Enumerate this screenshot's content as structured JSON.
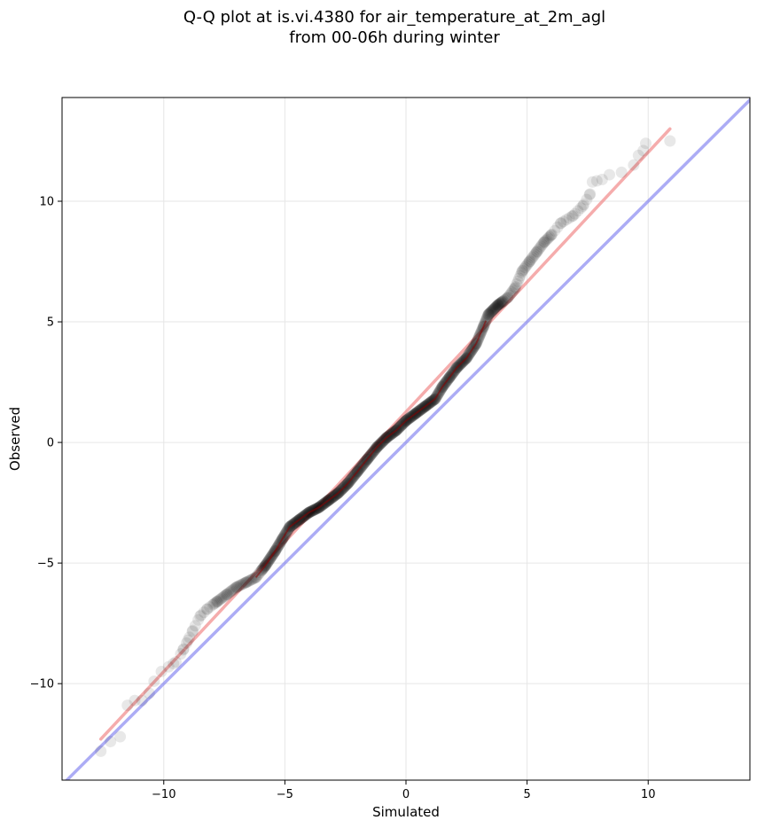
{
  "chart_data": {
    "type": "scatter",
    "title_line1": "Q-Q plot at is.vi.4380 for air_temperature_at_2m_agl",
    "title_line2": "from 00-06h during winter",
    "xlabel": "Simulated",
    "ylabel": "Observed",
    "xlim": [
      -14.2,
      14.2
    ],
    "ylim": [
      -14.0,
      14.3
    ],
    "xticks": [
      -10,
      -5,
      0,
      5,
      10
    ],
    "yticks": [
      -10,
      -5,
      0,
      5,
      10
    ],
    "xtick_labels": [
      "−10",
      "−5",
      "0",
      "5",
      "10"
    ],
    "ytick_labels": [
      "−10",
      "−5",
      "0",
      "5",
      "10"
    ],
    "grid": true,
    "colors": {
      "points": "#000000",
      "fit_line": "#f08080",
      "identity_line": "#8080f0",
      "inner_trend": "#8b0000"
    },
    "quantile_curve": [
      [
        -12.6,
        -12.8
      ],
      [
        -12.2,
        -12.4
      ],
      [
        -11.8,
        -12.2
      ],
      [
        -11.5,
        -10.9
      ],
      [
        -11.2,
        -10.7
      ],
      [
        -10.9,
        -10.7
      ],
      [
        -10.6,
        -10.4
      ],
      [
        -10.4,
        -9.9
      ],
      [
        -10.1,
        -9.5
      ],
      [
        -9.8,
        -9.3
      ],
      [
        -9.5,
        -9.1
      ],
      [
        -9.2,
        -8.6
      ],
      [
        -9.0,
        -8.2
      ],
      [
        -8.8,
        -7.8
      ],
      [
        -8.5,
        -7.2
      ],
      [
        -8.2,
        -6.9
      ],
      [
        -7.8,
        -6.6
      ],
      [
        -7.4,
        -6.3
      ],
      [
        -7.0,
        -6.0
      ],
      [
        -6.6,
        -5.8
      ],
      [
        -6.2,
        -5.6
      ],
      [
        -5.8,
        -5.1
      ],
      [
        -5.4,
        -4.5
      ],
      [
        -5.1,
        -4.0
      ],
      [
        -4.8,
        -3.5
      ],
      [
        -4.4,
        -3.2
      ],
      [
        -4.0,
        -2.9
      ],
      [
        -3.6,
        -2.7
      ],
      [
        -3.2,
        -2.4
      ],
      [
        -2.8,
        -2.1
      ],
      [
        -2.4,
        -1.7
      ],
      [
        -2.0,
        -1.2
      ],
      [
        -1.6,
        -0.7
      ],
      [
        -1.2,
        -0.2
      ],
      [
        -0.8,
        0.2
      ],
      [
        -0.4,
        0.5
      ],
      [
        0.0,
        0.9
      ],
      [
        0.4,
        1.2
      ],
      [
        0.8,
        1.5
      ],
      [
        1.2,
        1.8
      ],
      [
        1.5,
        2.3
      ],
      [
        1.8,
        2.7
      ],
      [
        2.1,
        3.1
      ],
      [
        2.5,
        3.5
      ],
      [
        2.9,
        4.1
      ],
      [
        3.2,
        4.8
      ],
      [
        3.4,
        5.3
      ],
      [
        3.8,
        5.7
      ],
      [
        4.2,
        6.0
      ],
      [
        4.5,
        6.4
      ],
      [
        4.8,
        7.1
      ],
      [
        5.1,
        7.5
      ],
      [
        5.4,
        7.9
      ],
      [
        5.7,
        8.3
      ],
      [
        6.0,
        8.6
      ],
      [
        6.4,
        9.1
      ],
      [
        6.9,
        9.4
      ],
      [
        7.3,
        9.8
      ],
      [
        7.6,
        10.3
      ],
      [
        7.7,
        10.8
      ],
      [
        8.1,
        10.9
      ],
      [
        8.4,
        11.1
      ],
      [
        8.9,
        11.2
      ],
      [
        9.4,
        11.5
      ],
      [
        9.6,
        11.9
      ],
      [
        9.8,
        12.1
      ],
      [
        9.9,
        12.4
      ],
      [
        10.9,
        12.5
      ]
    ],
    "fit_line": {
      "x": [
        -12.6,
        10.9
      ],
      "y": [
        -12.3,
        13.0
      ]
    },
    "identity_line": {
      "x": [
        -14.2,
        14.2
      ],
      "y": [
        -14.2,
        14.2
      ]
    }
  }
}
